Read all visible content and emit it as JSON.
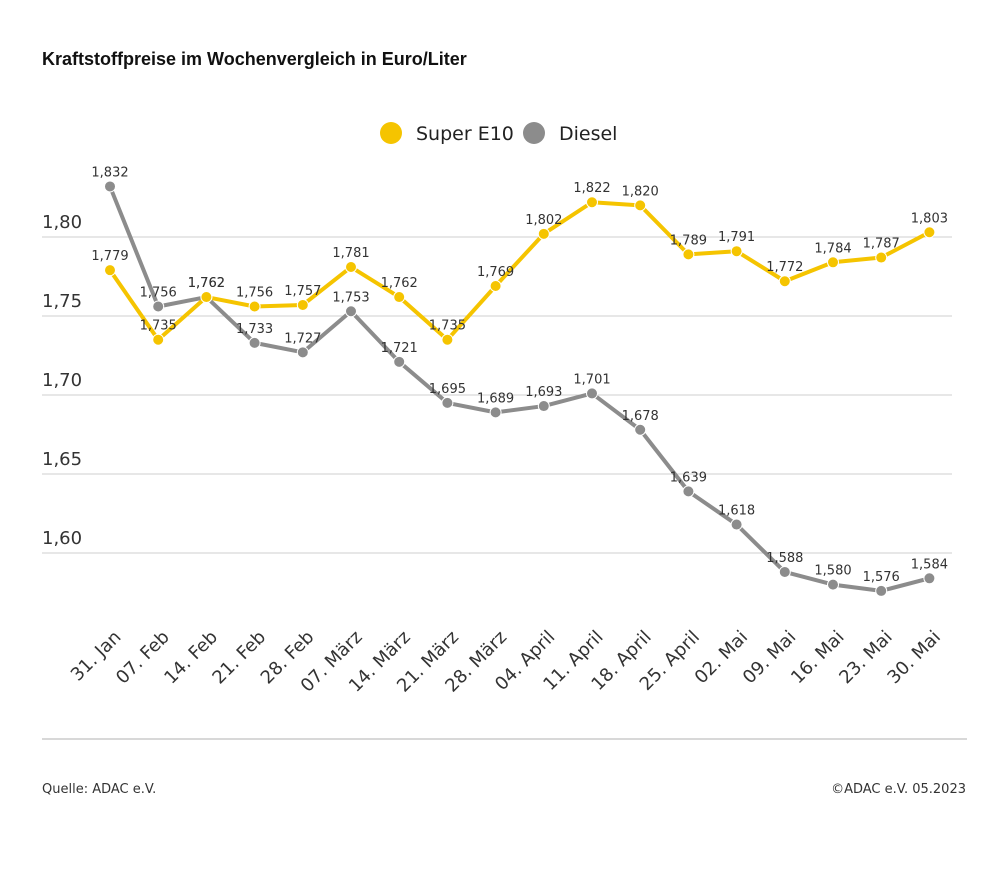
{
  "chart_data": {
    "type": "line",
    "title": "Kraftstoffpreise im Wochenvergleich in Euro/Liter",
    "categories": [
      "31. Jan",
      "07. Feb",
      "14. Feb",
      "21. Feb",
      "28. Feb",
      "07. März",
      "14. März",
      "21. März",
      "28. März",
      "04. April",
      "11. April",
      "18. April",
      "25. April",
      "02. Mai",
      "09. Mai",
      "16. Mai",
      "23. Mai",
      "30. Mai"
    ],
    "series": [
      {
        "name": "Super E10",
        "color": "#f5c400",
        "values": [
          1.779,
          1.735,
          1.762,
          1.756,
          1.757,
          1.781,
          1.762,
          1.735,
          1.769,
          1.802,
          1.822,
          1.82,
          1.789,
          1.791,
          1.772,
          1.784,
          1.787,
          1.803
        ],
        "labels": [
          "1,779",
          "1,735",
          "1,762",
          "1,756",
          "1,757",
          "1,781",
          "1,762",
          "1,735",
          "1,769",
          "1,802",
          "1,822",
          "1,820",
          "1,789",
          "1,791",
          "1,772",
          "1,784",
          "1,787",
          "1,803"
        ]
      },
      {
        "name": "Diesel",
        "color": "#8c8c8c",
        "values": [
          1.832,
          1.756,
          1.762,
          1.733,
          1.727,
          1.753,
          1.721,
          1.695,
          1.689,
          1.693,
          1.701,
          1.678,
          1.639,
          1.618,
          1.588,
          1.58,
          1.576,
          1.584
        ],
        "labels": [
          "1,832",
          "1,756",
          "1,762",
          "1,733",
          "1,727",
          "1,753",
          "1,721",
          "1,695",
          "1,689",
          "1,693",
          "1,701",
          "1,678",
          "1,639",
          "1,618",
          "1,588",
          "1,580",
          "1,576",
          "1,584"
        ]
      }
    ],
    "yticks": [
      1.6,
      1.65,
      1.7,
      1.75,
      1.8
    ],
    "ytick_labels": [
      "1,60",
      "1,65",
      "1,70",
      "1,75",
      "1,80"
    ],
    "ylim": [
      1.56,
      1.85
    ],
    "grid": true,
    "legend_position": "top-center",
    "xlabel": "",
    "ylabel": ""
  },
  "footer": {
    "source": "Quelle: ADAC e.V.",
    "copyright": "©ADAC e.V. 05.2023"
  }
}
